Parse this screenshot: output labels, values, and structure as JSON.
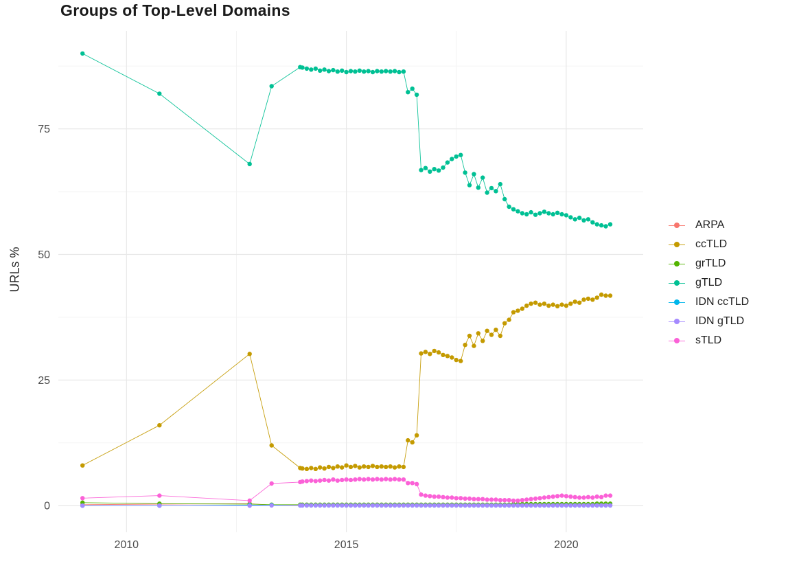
{
  "page": {
    "background": "#ffffff"
  },
  "chart_data": {
    "type": "line",
    "title": "Groups of Top-Level Domains",
    "xlabel": "",
    "ylabel": "URLs %",
    "grid": true,
    "legend_position": "right",
    "x_range": [
      2008.45,
      2021.75
    ],
    "y_range": [
      -5.3,
      94.5
    ],
    "x_ticks": {
      "major": [
        2010,
        2015,
        2020
      ],
      "minor": [
        2012.5,
        2017.5
      ],
      "labels": [
        "2010",
        "2015",
        "2020"
      ]
    },
    "y_ticks": {
      "major": [
        0,
        25,
        50,
        75
      ],
      "minor": [
        12.5,
        37.5,
        62.5,
        87.5
      ],
      "labels": [
        "0",
        "25",
        "50",
        "75"
      ]
    },
    "x": [
      2009.0,
      2010.75,
      2012.8,
      2013.3,
      2013.95,
      2014.0,
      2014.1,
      2014.2,
      2014.3,
      2014.4,
      2014.5,
      2014.6,
      2014.7,
      2014.8,
      2014.9,
      2015.0,
      2015.1,
      2015.2,
      2015.3,
      2015.4,
      2015.5,
      2015.6,
      2015.7,
      2015.8,
      2015.9,
      2016.0,
      2016.1,
      2016.2,
      2016.3,
      2016.4,
      2016.5,
      2016.6,
      2016.7,
      2016.8,
      2016.9,
      2017.0,
      2017.1,
      2017.2,
      2017.3,
      2017.4,
      2017.5,
      2017.6,
      2017.7,
      2017.8,
      2017.9,
      2018.0,
      2018.1,
      2018.2,
      2018.3,
      2018.4,
      2018.5,
      2018.6,
      2018.7,
      2018.8,
      2018.9,
      2019.0,
      2019.1,
      2019.2,
      2019.3,
      2019.4,
      2019.5,
      2019.6,
      2019.7,
      2019.8,
      2019.9,
      2020.0,
      2020.1,
      2020.2,
      2020.3,
      2020.4,
      2020.5,
      2020.6,
      2020.7,
      2020.8,
      2020.9,
      2021.0
    ],
    "series": [
      {
        "name": "ARPA",
        "color": "#F8766D",
        "values": [
          0.2,
          0.3,
          0.4,
          0.1,
          0.1,
          0.1,
          0.1,
          0.1,
          0.1,
          0.1,
          0.1,
          0.1,
          0.1,
          0.1,
          0.1,
          0.1,
          0.1,
          0.1,
          0.1,
          0.1,
          0.1,
          0.1,
          0.1,
          0.1,
          0.1,
          0.1,
          0.1,
          0.1,
          0.1,
          0.1,
          0.1,
          0.1,
          0.1,
          0.1,
          0.1,
          0.1,
          0.1,
          0.1,
          0.1,
          0.1,
          0.1,
          0.1,
          0.1,
          0.1,
          0.1,
          0.1,
          0.1,
          0.1,
          0.1,
          0.1,
          0.1,
          0.1,
          0.1,
          0.1,
          0.1,
          0.1,
          0.1,
          0.1,
          0.1,
          0.1,
          0.1,
          0.1,
          0.1,
          0.1,
          0.1,
          0.1,
          0.1,
          0.1,
          0.1,
          0.1,
          0.1,
          0.1,
          0.1,
          0.1,
          0.1,
          0.1
        ]
      },
      {
        "name": "ccTLD",
        "color": "#C49A00",
        "values": [
          8.0,
          16.0,
          30.2,
          12.0,
          7.5,
          7.4,
          7.3,
          7.5,
          7.3,
          7.6,
          7.4,
          7.7,
          7.5,
          7.8,
          7.6,
          8.0,
          7.7,
          7.9,
          7.6,
          7.8,
          7.7,
          7.9,
          7.7,
          7.8,
          7.7,
          7.8,
          7.6,
          7.8,
          7.7,
          13.0,
          12.6,
          14.0,
          30.3,
          30.6,
          30.2,
          30.8,
          30.5,
          30.0,
          29.8,
          29.5,
          29.0,
          28.8,
          32.0,
          33.8,
          31.8,
          34.3,
          32.8,
          34.8,
          34.0,
          35.0,
          33.8,
          36.3,
          37.0,
          38.5,
          38.8,
          39.2,
          39.8,
          40.2,
          40.4,
          40.0,
          40.2,
          39.8,
          40.0,
          39.7,
          40.0,
          39.8,
          40.2,
          40.6,
          40.4,
          41.0,
          41.2,
          41.0,
          41.4,
          42.0,
          41.8,
          41.8
        ]
      },
      {
        "name": "grTLD",
        "color": "#53B400",
        "values": [
          0.6,
          0.4,
          0.3,
          0.2,
          0.2,
          0.2,
          0.2,
          0.2,
          0.2,
          0.2,
          0.2,
          0.2,
          0.2,
          0.2,
          0.2,
          0.2,
          0.2,
          0.2,
          0.2,
          0.2,
          0.2,
          0.2,
          0.2,
          0.2,
          0.2,
          0.2,
          0.2,
          0.2,
          0.2,
          0.2,
          0.2,
          0.2,
          0.2,
          0.2,
          0.2,
          0.2,
          0.2,
          0.2,
          0.2,
          0.2,
          0.2,
          0.2,
          0.2,
          0.2,
          0.2,
          0.2,
          0.2,
          0.2,
          0.2,
          0.2,
          0.2,
          0.2,
          0.2,
          0.3,
          0.3,
          0.3,
          0.3,
          0.3,
          0.3,
          0.3,
          0.3,
          0.3,
          0.3,
          0.3,
          0.3,
          0.3,
          0.3,
          0.3,
          0.3,
          0.3,
          0.3,
          0.3,
          0.4,
          0.4,
          0.4,
          0.4
        ]
      },
      {
        "name": "gTLD",
        "color": "#00C094",
        "values": [
          90.0,
          82.0,
          68.0,
          83.5,
          87.3,
          87.2,
          87.0,
          86.8,
          87.0,
          86.6,
          86.8,
          86.5,
          86.7,
          86.4,
          86.6,
          86.3,
          86.5,
          86.4,
          86.6,
          86.4,
          86.5,
          86.3,
          86.5,
          86.4,
          86.5,
          86.4,
          86.5,
          86.3,
          86.4,
          82.3,
          83.0,
          81.8,
          66.8,
          67.2,
          66.5,
          67.0,
          66.7,
          67.3,
          68.3,
          69.0,
          69.5,
          69.8,
          66.3,
          63.8,
          66.0,
          63.3,
          65.3,
          62.3,
          63.2,
          62.6,
          64.0,
          61.0,
          59.5,
          59.0,
          58.6,
          58.2,
          58.0,
          58.4,
          57.9,
          58.2,
          58.5,
          58.2,
          58.0,
          58.3,
          58.0,
          57.8,
          57.4,
          57.0,
          57.3,
          56.8,
          57.0,
          56.4,
          56.0,
          55.8,
          55.6,
          56.0
        ]
      },
      {
        "name": "IDN ccTLD",
        "color": "#00B6EB",
        "values": [
          0.0,
          0.0,
          0.1,
          0.1,
          0.05,
          0.05,
          0.05,
          0.05,
          0.05,
          0.05,
          0.05,
          0.05,
          0.05,
          0.05,
          0.05,
          0.05,
          0.05,
          0.05,
          0.05,
          0.05,
          0.05,
          0.05,
          0.05,
          0.05,
          0.05,
          0.05,
          0.05,
          0.05,
          0.05,
          0.05,
          0.05,
          0.05,
          0.05,
          0.05,
          0.05,
          0.05,
          0.05,
          0.05,
          0.05,
          0.05,
          0.05,
          0.05,
          0.05,
          0.05,
          0.05,
          0.05,
          0.05,
          0.05,
          0.05,
          0.05,
          0.05,
          0.05,
          0.05,
          0.05,
          0.05,
          0.05,
          0.05,
          0.05,
          0.05,
          0.05,
          0.05,
          0.05,
          0.05,
          0.05,
          0.05,
          0.05,
          0.05,
          0.05,
          0.05,
          0.05,
          0.05,
          0.05,
          0.05,
          0.05,
          0.05,
          0.05
        ]
      },
      {
        "name": "IDN gTLD",
        "color": "#A58AFF",
        "values": [
          0.0,
          0.0,
          0.0,
          0.05,
          0.05,
          0.05,
          0.05,
          0.05,
          0.05,
          0.05,
          0.05,
          0.05,
          0.05,
          0.05,
          0.05,
          0.05,
          0.05,
          0.05,
          0.05,
          0.05,
          0.05,
          0.05,
          0.05,
          0.05,
          0.05,
          0.05,
          0.05,
          0.05,
          0.05,
          0.05,
          0.05,
          0.05,
          0.05,
          0.05,
          0.05,
          0.05,
          0.05,
          0.05,
          0.05,
          0.05,
          0.05,
          0.05,
          0.05,
          0.05,
          0.05,
          0.05,
          0.05,
          0.05,
          0.05,
          0.05,
          0.05,
          0.05,
          0.05,
          0.05,
          0.05,
          0.05,
          0.05,
          0.05,
          0.05,
          0.05,
          0.05,
          0.05,
          0.05,
          0.05,
          0.05,
          0.05,
          0.05,
          0.05,
          0.05,
          0.05,
          0.05,
          0.05,
          0.05,
          0.05,
          0.05,
          0.05
        ]
      },
      {
        "name": "sTLD",
        "color": "#FB61D7",
        "values": [
          1.5,
          2.0,
          1.0,
          4.4,
          4.7,
          4.8,
          4.9,
          5.0,
          4.9,
          5.0,
          5.1,
          5.0,
          5.2,
          5.0,
          5.1,
          5.2,
          5.1,
          5.2,
          5.3,
          5.2,
          5.3,
          5.2,
          5.3,
          5.2,
          5.3,
          5.2,
          5.3,
          5.2,
          5.2,
          4.5,
          4.5,
          4.3,
          2.2,
          2.0,
          1.9,
          1.8,
          1.8,
          1.7,
          1.6,
          1.6,
          1.5,
          1.5,
          1.4,
          1.4,
          1.3,
          1.3,
          1.3,
          1.2,
          1.2,
          1.2,
          1.1,
          1.1,
          1.1,
          1.0,
          1.0,
          1.1,
          1.2,
          1.3,
          1.4,
          1.5,
          1.6,
          1.7,
          1.8,
          1.9,
          2.0,
          1.9,
          1.8,
          1.7,
          1.6,
          1.6,
          1.7,
          1.6,
          1.8,
          1.7,
          2.0,
          2.0
        ]
      }
    ],
    "style": {
      "grid_major_color": "#E8E8E8",
      "grid_minor_color": "#F2F2F2",
      "tick_label_color": "#4d4d4d",
      "point_radius": 3.2,
      "line_width": 0.9
    }
  }
}
